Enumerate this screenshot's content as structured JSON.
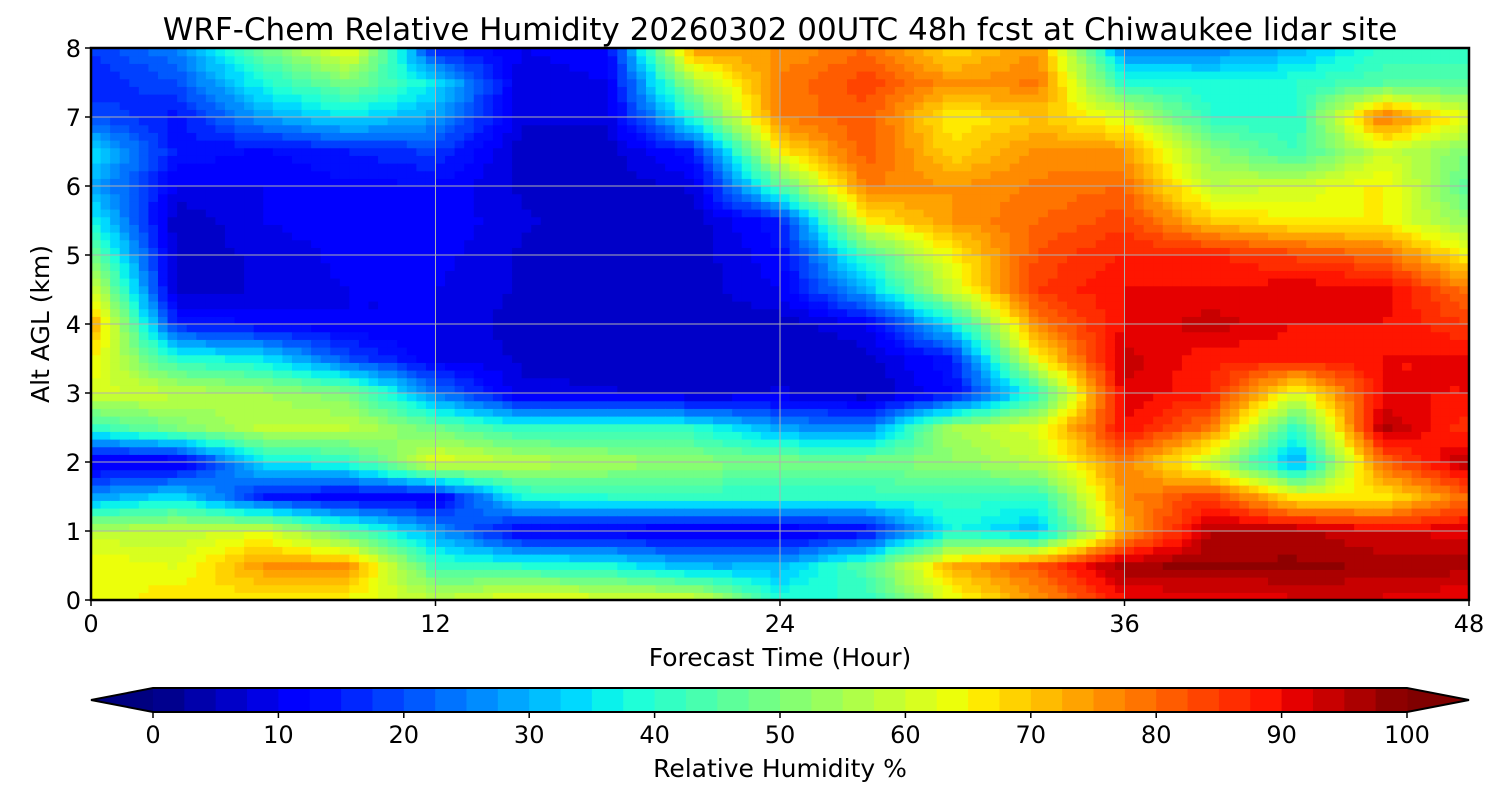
{
  "chart_data": {
    "type": "heatmap",
    "title": "WRF-Chem Relative Humidity 20260302 00UTC 48h fcst at Chiwaukee lidar site",
    "xlabel": "Forecast Time (Hour)",
    "ylabel": "Alt AGL (km)",
    "xlim": [
      0,
      48
    ],
    "ylim": [
      0,
      8
    ],
    "x_ticks": [
      "0",
      "12",
      "24",
      "36",
      "48"
    ],
    "x_tick_values": [
      0,
      12,
      24,
      36,
      48
    ],
    "y_ticks": [
      "0",
      "1",
      "2",
      "3",
      "4",
      "5",
      "6",
      "7",
      "8"
    ],
    "y_tick_values": [
      0,
      1,
      2,
      3,
      4,
      5,
      6,
      7,
      8
    ],
    "grid": true,
    "colormap": "jet",
    "colorbar": {
      "label": "Relative Humidity %",
      "range": [
        0,
        100
      ],
      "ticks": [
        "0",
        "10",
        "20",
        "30",
        "40",
        "50",
        "60",
        "70",
        "80",
        "90",
        "100"
      ],
      "tick_values": [
        0,
        10,
        20,
        30,
        40,
        50,
        60,
        70,
        80,
        90,
        100
      ],
      "extend": "both",
      "placement": "bottom"
    },
    "hours": [
      0,
      3,
      6,
      9,
      12,
      15,
      18,
      21,
      24,
      27,
      30,
      33,
      36,
      39,
      42,
      45,
      48
    ],
    "altitudes_km": [
      0,
      0.5,
      1,
      1.5,
      2,
      2.5,
      3,
      3.5,
      4,
      4.5,
      5,
      5.5,
      6,
      6.5,
      7,
      7.5,
      8
    ],
    "rh_profiles_by_hour": [
      [
        62,
        65,
        58,
        28,
        8,
        40,
        62,
        65,
        75,
        62,
        50,
        38,
        30,
        35,
        20,
        15,
        18
      ],
      [
        68,
        62,
        58,
        35,
        8,
        50,
        58,
        40,
        15,
        6,
        6,
        5,
        10,
        14,
        14,
        20,
        25
      ],
      [
        65,
        75,
        62,
        15,
        35,
        58,
        55,
        35,
        12,
        8,
        8,
        10,
        10,
        12,
        28,
        38,
        48
      ],
      [
        64,
        75,
        45,
        10,
        40,
        58,
        50,
        20,
        10,
        10,
        11,
        12,
        12,
        15,
        35,
        50,
        65
      ],
      [
        58,
        42,
        28,
        10,
        63,
        48,
        25,
        10,
        10,
        10,
        11,
        12,
        12,
        18,
        28,
        35,
        15
      ],
      [
        65,
        40,
        10,
        38,
        58,
        40,
        8,
        7,
        6,
        7,
        7,
        8,
        7,
        6,
        8,
        8,
        10
      ],
      [
        62,
        38,
        10,
        40,
        55,
        40,
        8,
        6,
        6,
        6,
        6,
        6,
        6,
        6,
        8,
        10,
        12
      ],
      [
        62,
        30,
        8,
        40,
        52,
        40,
        6,
        6,
        6,
        6,
        6,
        6,
        8,
        15,
        40,
        55,
        75
      ],
      [
        40,
        30,
        8,
        40,
        50,
        28,
        8,
        5,
        6,
        10,
        12,
        15,
        45,
        65,
        78,
        78,
        75
      ],
      [
        40,
        45,
        12,
        40,
        50,
        25,
        5,
        6,
        10,
        30,
        42,
        65,
        78,
        82,
        82,
        84,
        80
      ],
      [
        63,
        72,
        38,
        42,
        52,
        55,
        12,
        15,
        35,
        60,
        65,
        75,
        75,
        68,
        65,
        75,
        68
      ],
      [
        75,
        82,
        30,
        40,
        58,
        62,
        40,
        65,
        78,
        85,
        83,
        80,
        78,
        76,
        70,
        78,
        75
      ],
      [
        90,
        97,
        72,
        76,
        78,
        90,
        92,
        94,
        90,
        90,
        88,
        84,
        80,
        75,
        62,
        40,
        25
      ],
      [
        90,
        98,
        95,
        85,
        58,
        78,
        88,
        88,
        94,
        90,
        88,
        70,
        58,
        52,
        40,
        38,
        25
      ],
      [
        92,
        98,
        96,
        65,
        28,
        40,
        62,
        88,
        90,
        92,
        84,
        65,
        60,
        42,
        40,
        40,
        30
      ],
      [
        92,
        97,
        92,
        65,
        80,
        96,
        90,
        90,
        90,
        92,
        80,
        65,
        66,
        60,
        80,
        45,
        40
      ],
      [
        90,
        96,
        92,
        80,
        96,
        85,
        90,
        90,
        85,
        78,
        65,
        52,
        45,
        50,
        62,
        45,
        40
      ]
    ]
  }
}
